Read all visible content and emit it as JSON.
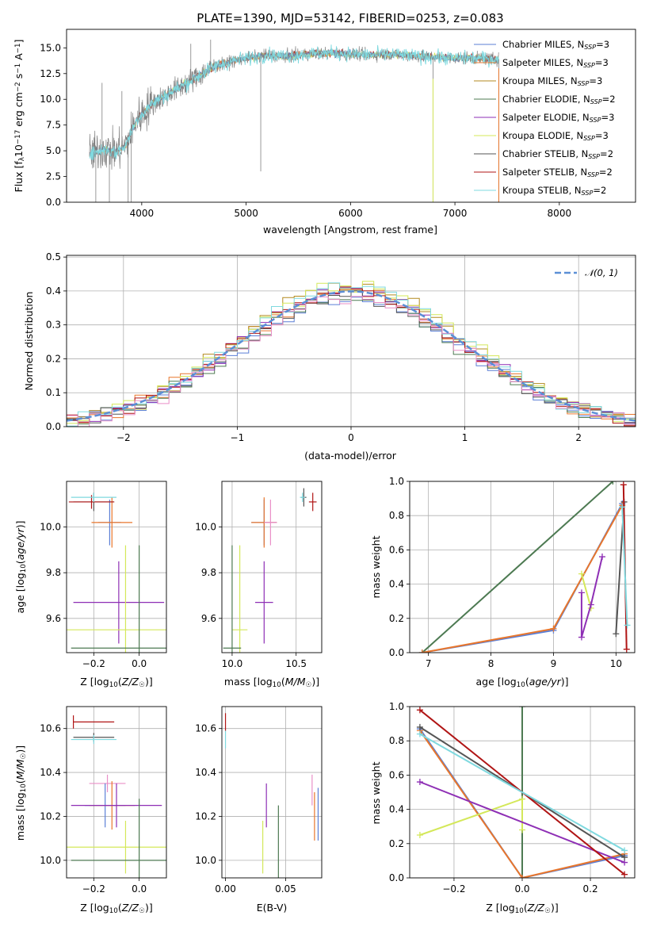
{
  "colors": {
    "Chabrier MILES": "#5b7fd6",
    "Salpeter MILES": "#e8762c",
    "Kroupa MILES": "#b38a1f",
    "Chabrier ELODIE": "#4d7a52",
    "Salpeter ELODIE": "#8e2fb5",
    "Kroupa ELODIE": "#d4e85a",
    "Chabrier STELIB": "#555555",
    "Salpeter STELIB": "#b01515",
    "Kroupa STELIB": "#7fd9df",
    "spectrum": "#808080",
    "normal": "#5b8fd6",
    "pink": "#e98fc7",
    "orange2": "#e8842c"
  },
  "chart_data": [
    {
      "id": "spectrum",
      "type": "line",
      "title": "PLATE=1390, MJD=53142, FIBERID=0253, z=0.083",
      "xlabel": "wavelength [Angstrom, rest frame]",
      "ylabel": "Flux [f_λ 10^-17 erg cm^-2 s^-1 A^-1]",
      "xlim": [
        3280,
        8730
      ],
      "ylim": [
        0,
        16.8
      ],
      "xticks": [
        4000,
        5000,
        6000,
        7000,
        8000
      ],
      "yticks": [
        0.0,
        2.5,
        5.0,
        7.5,
        10.0,
        12.5,
        15.0
      ],
      "legend_position": "right",
      "grid": false,
      "legend": [
        {
          "base": "Chabrier MILES",
          "nssp": "3"
        },
        {
          "base": "Salpeter MILES",
          "nssp": "3"
        },
        {
          "base": "Kroupa MILES",
          "nssp": "3"
        },
        {
          "base": "Chabrier ELODIE",
          "nssp": "2"
        },
        {
          "base": "Salpeter ELODIE",
          "nssp": "3"
        },
        {
          "base": "Kroupa ELODIE",
          "nssp": "3"
        },
        {
          "base": "Chabrier STELIB",
          "nssp": "2"
        },
        {
          "base": "Salpeter STELIB",
          "nssp": "2"
        },
        {
          "base": "Kroupa STELIB",
          "nssp": "2"
        }
      ],
      "continuum": [
        [
          3500,
          4.6
        ],
        [
          3650,
          5.2
        ],
        [
          3750,
          4.8
        ],
        [
          3850,
          5.6
        ],
        [
          3950,
          8.0
        ],
        [
          4100,
          9.6
        ],
        [
          4300,
          10.8
        ],
        [
          4500,
          12.0
        ],
        [
          4700,
          13.2
        ],
        [
          4900,
          13.8
        ],
        [
          5000,
          14.0
        ],
        [
          5200,
          14.3
        ],
        [
          5400,
          14.2
        ],
        [
          5600,
          14.4
        ],
        [
          5800,
          14.5
        ],
        [
          6000,
          14.4
        ],
        [
          6200,
          14.3
        ],
        [
          6400,
          14.4
        ],
        [
          6600,
          14.2
        ],
        [
          6800,
          14.1
        ],
        [
          7000,
          14.0
        ],
        [
          7200,
          14.0
        ],
        [
          7400,
          13.9
        ]
      ],
      "spikes": [
        [
          3560,
          0
        ],
        [
          3690,
          0
        ],
        [
          3870,
          0
        ],
        [
          3900,
          0
        ],
        [
          5140,
          3.0
        ],
        [
          6790,
          0
        ],
        [
          7420,
          0
        ],
        [
          3620,
          11.6
        ],
        [
          3810,
          10.8
        ],
        [
          4470,
          15.4
        ],
        [
          4660,
          15.8
        ]
      ]
    },
    {
      "id": "residuals",
      "type": "step",
      "xlabel": "(data-model)/error",
      "ylabel": "Normed distribution",
      "xlim": [
        -2.5,
        2.5
      ],
      "ylim": [
        0,
        0.505
      ],
      "xticks": [
        -2,
        -1,
        0,
        1,
        2
      ],
      "yticks": [
        0.0,
        0.1,
        0.2,
        0.3,
        0.4,
        0.5
      ],
      "grid": true,
      "legend_label": "𝒩(0, 1)",
      "legend_position": "upper right",
      "bin_width": 0.1
    },
    {
      "id": "age_vs_Z",
      "type": "errorbar",
      "xlabel": "Z [log10(Z/Z☉)]",
      "ylabel": "age  [log10(age/yr)]",
      "xlim": [
        -0.32,
        0.12
      ],
      "ylim": [
        9.45,
        10.2
      ],
      "xticks": [
        -0.2,
        0.0
      ],
      "yticks": [
        9.6,
        9.8,
        10.0
      ],
      "grid": true,
      "points": [
        {
          "s": "Chabrier MILES",
          "x": -0.13,
          "y": 10.02,
          "xe": 0.05,
          "ye": 0.1
        },
        {
          "s": "Salpeter MILES",
          "x": -0.12,
          "y": 10.02,
          "xe": 0.09,
          "ye": 0.11
        },
        {
          "s": "Chabrier STELIB",
          "x": -0.2,
          "y": 10.11,
          "xe": 0.09,
          "ye": 0.04
        },
        {
          "s": "Salpeter STELIB",
          "x": -0.21,
          "y": 10.11,
          "xe": 0.1,
          "ye": 0.03
        },
        {
          "s": "Kroupa STELIB",
          "x": -0.2,
          "y": 10.13,
          "xe": 0.1,
          "ye": 0.02
        },
        {
          "s": "Salpeter ELODIE",
          "x": -0.09,
          "y": 9.67,
          "xe": 0.2,
          "ye": 0.18
        },
        {
          "s": "Kroupa ELODIE",
          "x": -0.06,
          "y": 9.55,
          "xe": 0.28,
          "ye": 0.37
        },
        {
          "s": "Chabrier ELODIE",
          "x": 0.0,
          "y": 9.47,
          "xe": 0.3,
          "ye": 0.45
        }
      ]
    },
    {
      "id": "age_vs_mass",
      "type": "errorbar",
      "xlabel": "mass [log10(M/M☉)]",
      "ylabel": "",
      "xlim": [
        9.92,
        10.7
      ],
      "ylim": [
        9.45,
        10.2
      ],
      "xticks": [
        10.0,
        10.5
      ],
      "yticks": [
        9.6,
        9.8,
        10.0
      ],
      "grid": true,
      "points": [
        {
          "s": "Chabrier MILES",
          "x": 10.25,
          "y": 10.02,
          "xe": 0.1,
          "ye": 0.1
        },
        {
          "s": "Salpeter MILES",
          "x": 10.25,
          "y": 10.02,
          "xe": 0.1,
          "ye": 0.11
        },
        {
          "s": "Pink",
          "x": 10.3,
          "y": 10.02,
          "xe": 0.05,
          "ye": 0.1
        },
        {
          "s": "Chabrier STELIB",
          "x": 10.56,
          "y": 10.13,
          "xe": 0.02,
          "ye": 0.04
        },
        {
          "s": "Kroupa STELIB",
          "x": 10.55,
          "y": 10.13,
          "xe": 0.02,
          "ye": 0.02
        },
        {
          "s": "Salpeter STELIB",
          "x": 10.63,
          "y": 10.11,
          "xe": 0.03,
          "ye": 0.04
        },
        {
          "s": "Salpeter ELODIE",
          "x": 10.25,
          "y": 9.67,
          "xe": 0.07,
          "ye": 0.18
        },
        {
          "s": "Kroupa ELODIE",
          "x": 10.06,
          "y": 9.55,
          "xe": 0.06,
          "ye": 0.37
        },
        {
          "s": "Chabrier ELODIE",
          "x": 10.0,
          "y": 9.47,
          "xe": 0.07,
          "ye": 0.45
        }
      ]
    },
    {
      "id": "mw_vs_age",
      "type": "line",
      "xlabel": "age  [log10(age/yr)]",
      "ylabel": "mass weight",
      "xlim": [
        6.7,
        10.3
      ],
      "ylim": [
        0,
        1
      ],
      "xticks": [
        7,
        8,
        9,
        10
      ],
      "yticks": [
        0.0,
        0.2,
        0.4,
        0.6,
        0.8,
        1.0
      ],
      "grid": true,
      "series": [
        {
          "s": "Chabrier ELODIE",
          "x": [
            6.9,
            9.95
          ],
          "y": [
            0.0,
            1.0
          ]
        },
        {
          "s": "Chabrier MILES",
          "x": [
            6.9,
            9.0,
            10.1
          ],
          "y": [
            0.0,
            0.13,
            0.87
          ]
        },
        {
          "s": "Salpeter MILES",
          "x": [
            6.9,
            9.0,
            10.1
          ],
          "y": [
            0.0,
            0.14,
            0.86
          ]
        },
        {
          "s": "Kroupa ELODIE",
          "x": [
            9.45,
            9.6
          ],
          "y": [
            0.46,
            0.26
          ]
        },
        {
          "s": "Salpeter ELODIE",
          "x": [
            9.45,
            9.45,
            9.6,
            9.78
          ],
          "y": [
            0.35,
            0.09,
            0.28,
            0.56
          ]
        },
        {
          "s": "Chabrier STELIB",
          "x": [
            10.0,
            10.13
          ],
          "y": [
            0.11,
            0.88
          ]
        },
        {
          "s": "Salpeter STELIB",
          "x": [
            10.12,
            10.17
          ],
          "y": [
            0.98,
            0.02
          ]
        },
        {
          "s": "Kroupa STELIB",
          "x": [
            10.1,
            10.18
          ],
          "y": [
            0.85,
            0.16
          ]
        }
      ]
    },
    {
      "id": "mass_vs_Z",
      "type": "errorbar",
      "xlabel": "Z [log10(Z/Z☉)]",
      "ylabel": "mass [log10(M/M☉)]",
      "xlim": [
        -0.32,
        0.12
      ],
      "ylim": [
        9.92,
        10.7
      ],
      "xticks": [
        -0.2,
        0.0
      ],
      "yticks": [
        10.0,
        10.2,
        10.4,
        10.6
      ],
      "grid": true,
      "points": [
        {
          "s": "Salpeter STELIB",
          "x": -0.29,
          "y": 10.63,
          "xe": 0.0,
          "ye": 0.03
        },
        {
          "s": "Salpeter STELIB",
          "x": -0.2,
          "y": 10.63,
          "xe": 0.09,
          "ye": 0.0
        },
        {
          "s": "Chabrier STELIB",
          "x": -0.2,
          "y": 10.56,
          "xe": 0.09,
          "ye": 0.02
        },
        {
          "s": "Kroupa STELIB",
          "x": -0.2,
          "y": 10.55,
          "xe": 0.1,
          "ye": 0.02
        },
        {
          "s": "Pink",
          "x": -0.14,
          "y": 10.35,
          "xe": 0.08,
          "ye": 0.04
        },
        {
          "s": "Chabrier MILES",
          "x": -0.15,
          "y": 10.25,
          "xe": 0.09,
          "ye": 0.1
        },
        {
          "s": "Salpeter MILES",
          "x": -0.12,
          "y": 10.25,
          "xe": 0.1,
          "ye": 0.11
        },
        {
          "s": "Salpeter ELODIE",
          "x": -0.1,
          "y": 10.25,
          "xe": 0.2,
          "ye": 0.1
        },
        {
          "s": "Kroupa ELODIE",
          "x": -0.06,
          "y": 10.06,
          "xe": 0.28,
          "ye": 0.12
        },
        {
          "s": "Chabrier ELODIE",
          "x": 0.0,
          "y": 10.0,
          "xe": 0.3,
          "ye": 0.28
        }
      ]
    },
    {
      "id": "mass_vs_EBV",
      "type": "errorbar",
      "xlabel": "E(B-V)",
      "ylabel": "",
      "xlim": [
        -0.003,
        0.08
      ],
      "ylim": [
        9.92,
        10.7
      ],
      "xticks": [
        0.0,
        0.05
      ],
      "yticks": [
        10.0,
        10.2,
        10.4,
        10.6
      ],
      "grid": true,
      "points": [
        {
          "s": "Salpeter STELIB",
          "x": 0.0,
          "y": 10.63,
          "xe": 0,
          "ye": 0.04
        },
        {
          "s": "Kroupa STELIB",
          "x": 0.0,
          "y": 10.55,
          "xe": 0,
          "ye": 0.04
        },
        {
          "s": "Kroupa ELODIE",
          "x": 0.031,
          "y": 10.06,
          "xe": 0,
          "ye": 0.12
        },
        {
          "s": "Salpeter ELODIE",
          "x": 0.034,
          "y": 10.25,
          "xe": 0,
          "ye": 0.1
        },
        {
          "s": "Chabrier ELODIE",
          "x": 0.044,
          "y": 10.05,
          "xe": 0,
          "ye": 0.2
        },
        {
          "s": "Pink",
          "x": 0.072,
          "y": 10.32,
          "xe": 0,
          "ye": 0.07
        },
        {
          "s": "Salpeter MILES",
          "x": 0.074,
          "y": 10.2,
          "xe": 0,
          "ye": 0.11
        },
        {
          "s": "Chabrier MILES",
          "x": 0.077,
          "y": 10.21,
          "xe": 0,
          "ye": 0.12
        }
      ]
    },
    {
      "id": "mw_vs_Z",
      "type": "line",
      "xlabel": "Z [log10(Z/Z☉)]",
      "ylabel": "mass weight",
      "xlim": [
        -0.33,
        0.33
      ],
      "ylim": [
        0,
        1
      ],
      "xticks": [
        -0.2,
        0.0,
        0.2
      ],
      "yticks": [
        0.0,
        0.2,
        0.4,
        0.6,
        0.8,
        1.0
      ],
      "grid": true,
      "series": [
        {
          "s": "Chabrier ELODIE",
          "x": [
            0.0,
            0.0
          ],
          "y": [
            0.0,
            1.0
          ]
        },
        {
          "s": "Chabrier MILES",
          "x": [
            -0.3,
            0.0,
            0.3
          ],
          "y": [
            0.87,
            0.0,
            0.13
          ]
        },
        {
          "s": "Salpeter MILES",
          "x": [
            -0.3,
            0.0,
            0.3
          ],
          "y": [
            0.86,
            0.0,
            0.14
          ]
        },
        {
          "s": "Kroupa ELODIE",
          "x": [
            -0.3,
            0.0,
            0.0
          ],
          "y": [
            0.25,
            0.46,
            0.28
          ]
        },
        {
          "s": "Salpeter ELODIE",
          "x": [
            -0.3,
            0.3
          ],
          "y": [
            0.56,
            0.09
          ]
        },
        {
          "s": "Chabrier STELIB",
          "x": [
            -0.3,
            0.3
          ],
          "y": [
            0.88,
            0.12
          ]
        },
        {
          "s": "Salpeter STELIB",
          "x": [
            -0.3,
            0.3
          ],
          "y": [
            0.98,
            0.02
          ]
        },
        {
          "s": "Kroupa STELIB",
          "x": [
            -0.3,
            0.3
          ],
          "y": [
            0.84,
            0.16
          ]
        }
      ]
    }
  ]
}
